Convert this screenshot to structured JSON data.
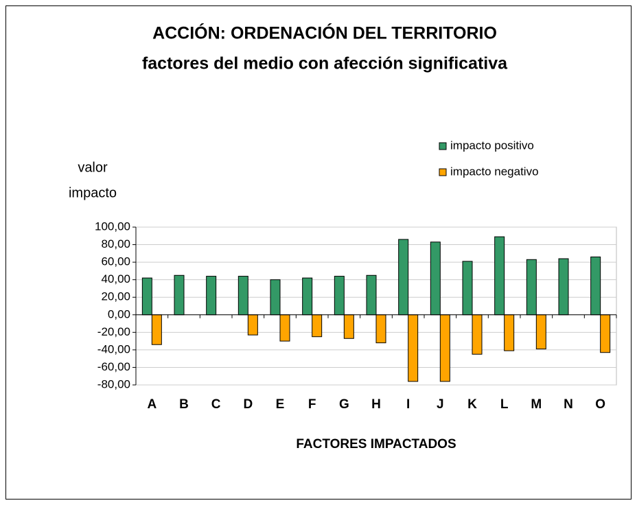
{
  "chart_data": {
    "type": "bar",
    "title": [
      "ACCIÓN: ORDENACIÓN DEL TERRITORIO",
      "factores del medio con afección significativa"
    ],
    "ylabel": [
      "valor",
      "impacto"
    ],
    "xlabel": "FACTORES IMPACTADOS",
    "categories": [
      "A",
      "B",
      "C",
      "D",
      "E",
      "F",
      "G",
      "H",
      "I",
      "J",
      "K",
      "L",
      "M",
      "N",
      "O"
    ],
    "series": [
      {
        "name": "impacto positivo",
        "color": "#339966",
        "values": [
          42,
          45,
          44,
          44,
          40,
          42,
          44,
          45,
          86,
          83,
          61,
          89,
          63,
          64,
          66
        ]
      },
      {
        "name": "impacto negativo",
        "color": "#ffa500",
        "values": [
          -34,
          null,
          null,
          -23,
          -30,
          -25,
          -27,
          -32,
          -76,
          -76,
          -45,
          -41,
          -39,
          null,
          -43
        ]
      }
    ],
    "ylim": [
      -80,
      100
    ],
    "yticks": [
      {
        "value": -80,
        "label": "-80,00"
      },
      {
        "value": -60,
        "label": "-60,00"
      },
      {
        "value": -40,
        "label": "-40,00"
      },
      {
        "value": -20,
        "label": "-20,00"
      },
      {
        "value": 0,
        "label": "0,00"
      },
      {
        "value": 20,
        "label": "20,00"
      },
      {
        "value": 40,
        "label": "40,00"
      },
      {
        "value": 60,
        "label": "60,00"
      },
      {
        "value": 80,
        "label": "80,00"
      },
      {
        "value": 100,
        "label": "100,00"
      }
    ],
    "grid": true,
    "legend": "top-right"
  }
}
